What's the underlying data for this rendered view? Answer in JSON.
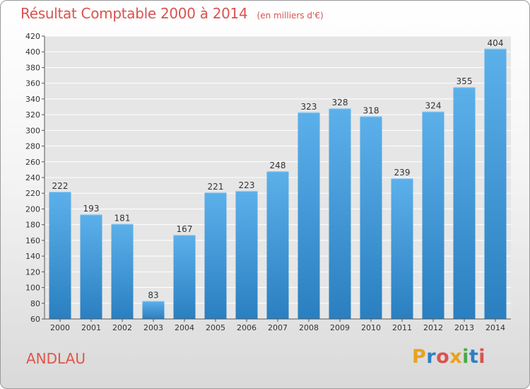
{
  "header": {
    "title": "Résultat Comptable 2000 à 2014",
    "subtitle": "(en milliers d'€)"
  },
  "footer": {
    "commune": "ANDLAU",
    "logo_text": "Proxiti",
    "logo_colors": [
      "#e8a21d",
      "#2e7fc2",
      "#d9534f",
      "#e8a21d",
      "#4aa84a",
      "#2e7fc2",
      "#d9534f"
    ]
  },
  "colors": {
    "bar_top": "#5cb0ea",
    "bar_bottom": "#2a7fc0",
    "title": "#d9534f",
    "grid": "#ffffff"
  },
  "chart_data": {
    "type": "bar",
    "title": "Résultat Comptable 2000 à 2014",
    "subtitle": "(en milliers d'€)",
    "categories": [
      "2000",
      "2001",
      "2002",
      "2003",
      "2004",
      "2005",
      "2006",
      "2007",
      "2008",
      "2009",
      "2010",
      "2011",
      "2012",
      "2013",
      "2014"
    ],
    "values": [
      222,
      193,
      181,
      83,
      167,
      221,
      223,
      248,
      323,
      328,
      318,
      239,
      324,
      355,
      404
    ],
    "ylim": [
      60,
      420
    ],
    "yticks": [
      60,
      80,
      100,
      120,
      140,
      160,
      180,
      200,
      220,
      240,
      260,
      280,
      300,
      320,
      340,
      360,
      380,
      400,
      420
    ],
    "grid": true,
    "xlabel": "",
    "ylabel": ""
  }
}
